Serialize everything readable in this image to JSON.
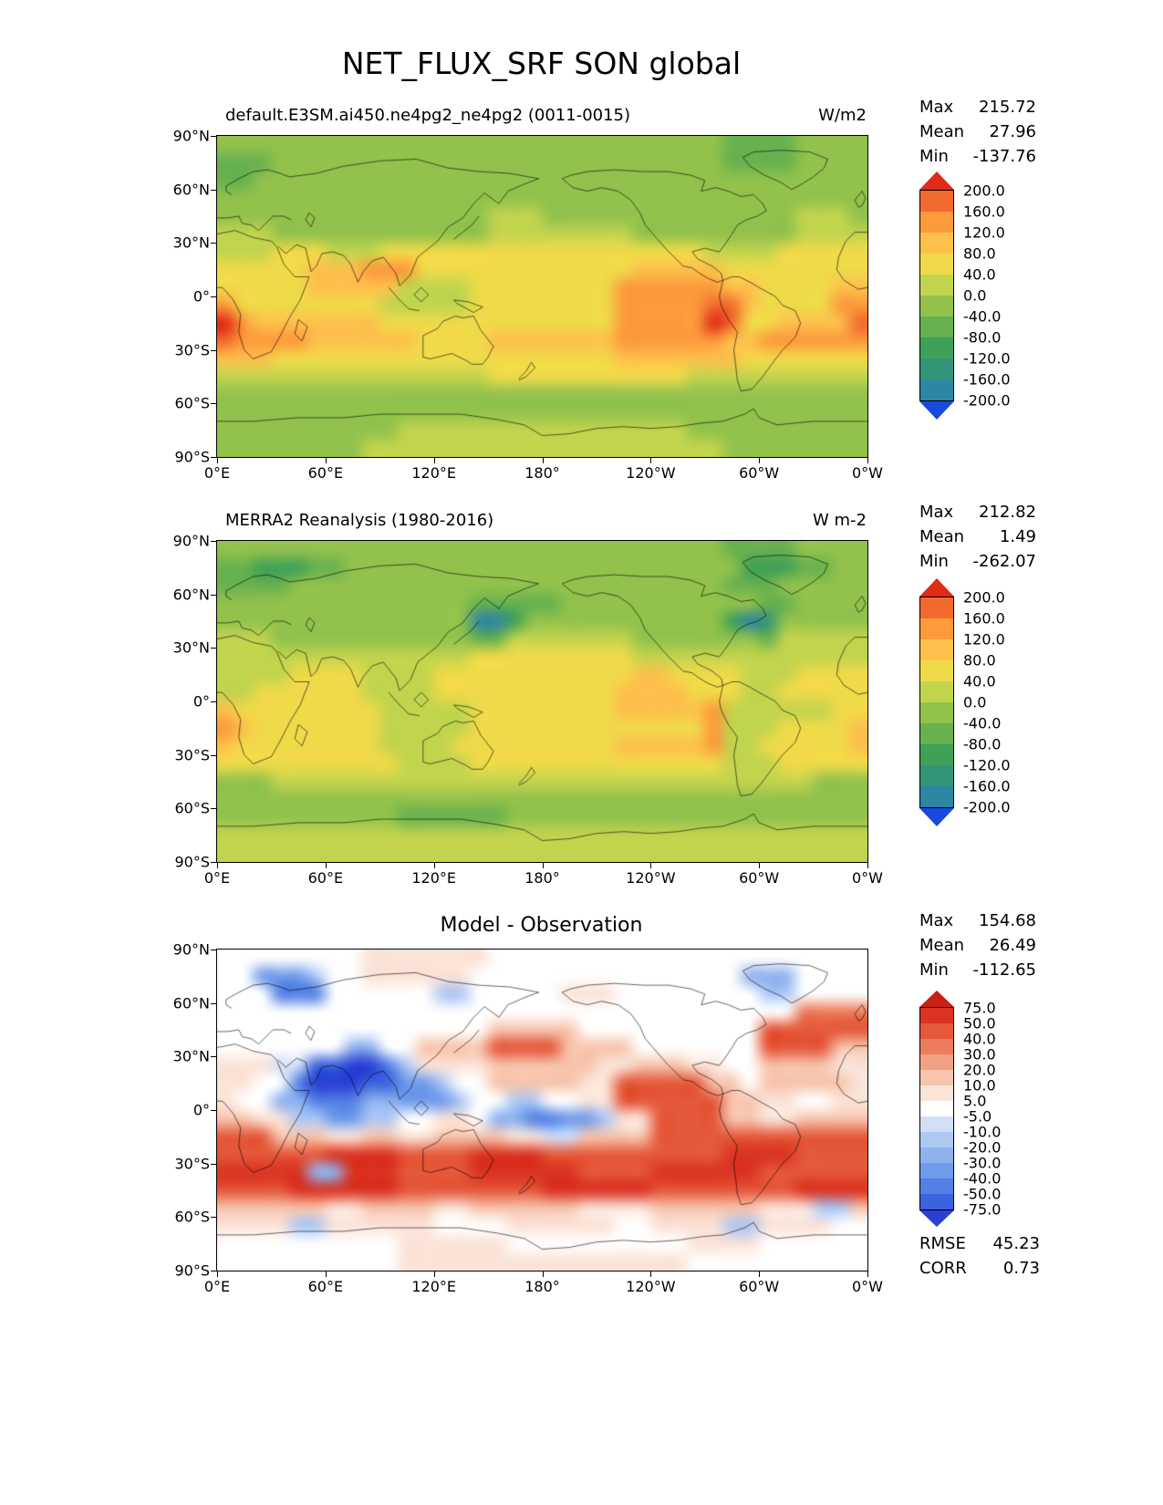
{
  "title": "NET_FLUX_SRF SON global",
  "chart_data": {
    "type": "heatmap",
    "description": "Three-panel lat-lon contour maps: model, reanalysis, and model-minus-observation difference of net surface flux (SON season, global).",
    "axes": {
      "x_ticks": [
        "0°E",
        "60°E",
        "120°E",
        "180°",
        "120°W",
        "60°W",
        "0°W"
      ],
      "y_ticks": [
        "90°N",
        "60°N",
        "30°N",
        "0°",
        "30°S",
        "60°S",
        "90°S"
      ],
      "lon_range": [
        0,
        360
      ],
      "lat_range": [
        90,
        -90
      ]
    },
    "panels": [
      {
        "name": "model",
        "title": "default.E3SM.ai450.ne4pg2_ne4pg2 (0011-0015)",
        "units": "W/m2",
        "stats": [
          [
            "Max",
            "215.72"
          ],
          [
            "Mean",
            "27.96"
          ],
          [
            "Min",
            "-137.76"
          ]
        ],
        "colorbar_ticks": [
          "200.0",
          "160.0",
          "120.0",
          "80.0",
          "40.0",
          "0.0",
          "-40.0",
          "-80.0",
          "-120.0",
          "-160.0",
          "-200.0"
        ],
        "palette": [
          "#1a49dd",
          "#2f86a2",
          "#349478",
          "#3fa058",
          "#68b14f",
          "#92c24c",
          "#c2d44d",
          "#f0da49",
          "#fdc04b",
          "#fc9a3c",
          "#f26a2d",
          "#e02b16"
        ],
        "grid": [
          "555555555555555555555555555544445555",
          "444555555555555555555555555544445555",
          "445555555555555555555555555555555555",
          "555555555555555555555555555555555555",
          "555555555555555666555555555555556665",
          "666555555555555666666665555555556666",
          "666777666777777777777777777666677777",
          "777778889997777777777778888877777777",
          "777778888866667777777799999988777788",
          "977777777666667777777799999AA8777799",
          "B98888888777777777777799999BA778888A",
          "A99998888887777888888899999988999999",
          "888777777777777777777788888887777777",
          "666666666666666777777777776666666666",
          "555555555555555555555555555555555555",
          "555555555555555555555555555555555555",
          "555555555566666666666666665555555555",
          "555555556666666666666666666655555555"
        ]
      },
      {
        "name": "obs",
        "title": "MERRA2 Reanalysis (1980-2016)",
        "units": "W m-2",
        "stats": [
          [
            "Max",
            "212.82"
          ],
          [
            "Mean",
            "1.49"
          ],
          [
            "Min",
            "-262.07"
          ]
        ],
        "colorbar_ticks": [
          "200.0",
          "160.0",
          "120.0",
          "80.0",
          "40.0",
          "0.0",
          "-40.0",
          "-80.0",
          "-120.0",
          "-160.0",
          "-200.0"
        ],
        "palette": [
          "#1a49dd",
          "#2f86a2",
          "#349478",
          "#3fa058",
          "#68b14f",
          "#92c24c",
          "#c2d44d",
          "#f0da49",
          "#fdc04b",
          "#fc9a3c",
          "#f26a2d",
          "#e02b16"
        ],
        "grid": [
          "555555555555555555555555555544445555",
          "443334455555555555555555555553334455",
          "444455555555555555555555555544455555",
          "555555555555554444455555555555445555",
          "555555555555551135555555555531255555",
          "666555555555554466666665555555466666",
          "666666666666667777777776666666666666",
          "666677776666777777777778877776667777",
          "667777776666777777777788887776677777",
          "877777777666667777777788888966666677",
          "987777777666667777777777777966677778",
          "877777777666677777777788888966777778",
          "777777777766667777777777777766677777",
          "555666666666666666666666666666666555",
          "555555555555555555555555555555555555",
          "555555555544444455555555555555555555",
          "666666666666666666666666666666666666",
          "666666666666666666666666666666666666"
        ]
      },
      {
        "name": "diff",
        "title": "Model - Observation",
        "units": "",
        "stats": [
          [
            "Max",
            "154.68"
          ],
          [
            "Mean",
            "26.49"
          ],
          [
            "Min",
            "-112.65"
          ]
        ],
        "extra_stats": [
          [
            "RMSE",
            "45.23"
          ],
          [
            "CORR",
            "0.73"
          ]
        ],
        "colorbar_ticks": [
          "75.0",
          "50.0",
          "40.0",
          "30.0",
          "20.0",
          "10.0",
          "5.0",
          "-5.0",
          "-10.0",
          "-20.0",
          "-30.0",
          "-40.0",
          "-50.0",
          "-75.0"
        ],
        "palette": [
          "#2a3fd4",
          "#3c63dd",
          "#5380e4",
          "#6f9bea",
          "#8fb2ef",
          "#aec8f4",
          "#d2def8",
          "#ffffff",
          "#fbe3d8",
          "#f7c4ad",
          "#f2a183",
          "#ec7c5c",
          "#e5583a",
          "#da3322",
          "#c92113"
        ],
        "grid": [
          "777777778888888777777777777777777777",
          "773335778888887777777777777774447777",
          "777222777777557777788877777777557777",
          "77777777777777777777777777777777BBBB",
          "777777777777777999997777777777CCCCCC",
          "777777744779999CCCC99997777777CCCC99",
          "888661100258888999999889998877999988",
          "8877200011335779999988CCCCC997999998",
          "8774422244333577557788CCCCCC99887788",
          "998855335577887442233588CCCC99889999",
          "CCC999889988999988669999CCCCCCCCCCCC",
          "CCCCCCDDDDCCCCDDDDCCCCCCCCCCDDDDCCCC",
          "DDDDD44DDDCCCCDDDDDDCCCCDDDDDDCCCCCC",
          "CCCCDDDDDDCCCCCCCCDDDDDDCCCCCCCCDDDD",
          "999999889999889999998888999999888559",
          "888855888888777788888877888855888877",
          "777777777788888877777777778888777777",
          "777777777788888888888888887777777777"
        ]
      }
    ]
  }
}
